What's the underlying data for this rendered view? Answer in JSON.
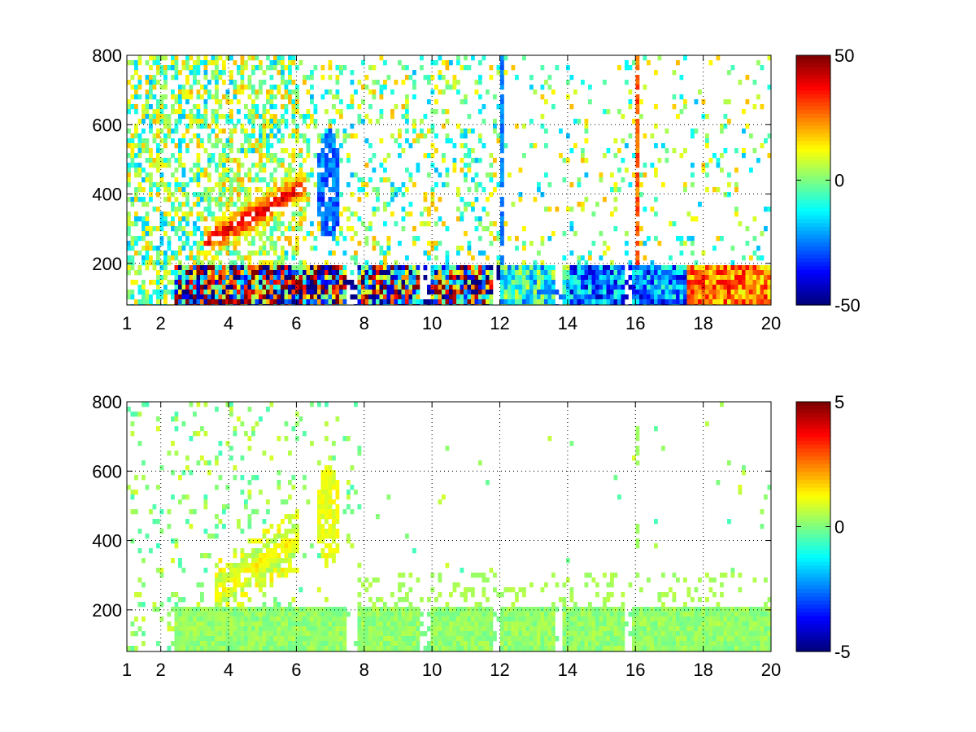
{
  "chart_data": [
    {
      "type": "heatmap",
      "title": "",
      "xlabel": "",
      "ylabel": "",
      "xlim": [
        1,
        20
      ],
      "ylim": [
        80,
        800
      ],
      "x_tick_labels": [
        "1",
        "2",
        "4",
        "6",
        "8",
        "10",
        "12",
        "14",
        "16",
        "18",
        "20"
      ],
      "x_ticks": [
        1,
        2,
        4,
        6,
        8,
        10,
        12,
        14,
        16,
        18,
        20
      ],
      "y_tick_labels": [
        "200",
        "400",
        "600",
        "800"
      ],
      "y_ticks": [
        200,
        400,
        600,
        800
      ],
      "grid": "dotted",
      "colormap": "jet",
      "colorbar": {
        "min": -50,
        "max": 50,
        "tick_labels": [
          "50",
          "0",
          "-50"
        ],
        "ticks": [
          50,
          0,
          -50
        ]
      },
      "description_features": {
        "ridge": {
          "x_start": 3.5,
          "x_end": 6.0,
          "y_start": 280,
          "y_end": 420,
          "value": 40
        },
        "blue_patch": {
          "x": 6.9,
          "y": 430,
          "value": -30
        },
        "low_freq_band": {
          "y_max": 200,
          "value_range": [
            -50,
            50
          ]
        },
        "vertical_stripes": [
          12.0,
          16.0
        ]
      }
    },
    {
      "type": "heatmap",
      "title": "",
      "xlabel": "",
      "ylabel": "",
      "xlim": [
        1,
        20
      ],
      "ylim": [
        80,
        800
      ],
      "x_tick_labels": [
        "1",
        "2",
        "4",
        "6",
        "8",
        "10",
        "12",
        "14",
        "16",
        "18",
        "20"
      ],
      "x_ticks": [
        1,
        2,
        4,
        6,
        8,
        10,
        12,
        14,
        16,
        18,
        20
      ],
      "y_tick_labels": [
        "200",
        "400",
        "600",
        "800"
      ],
      "y_ticks": [
        200,
        400,
        600,
        800
      ],
      "grid": "dotted",
      "colormap": "jet",
      "colorbar": {
        "min": -5,
        "max": 5,
        "tick_labels": [
          "5",
          "0",
          "-5"
        ],
        "ticks": [
          5,
          0,
          -5
        ]
      },
      "description_features": {
        "ridge": {
          "x_start": 3.8,
          "x_end": 5.8,
          "y_start": 270,
          "y_end": 400,
          "value": 1.5
        },
        "yellow_patch": {
          "x": 6.9,
          "y": 480,
          "value": 1.2
        },
        "low_freq_band": {
          "y_max": 220,
          "value": 0.2
        },
        "stripe_16": {
          "x": 16.0,
          "y_ranges": [
            [
              380,
              460
            ],
            [
              620,
              730
            ]
          ],
          "value": 0.3
        }
      }
    }
  ]
}
